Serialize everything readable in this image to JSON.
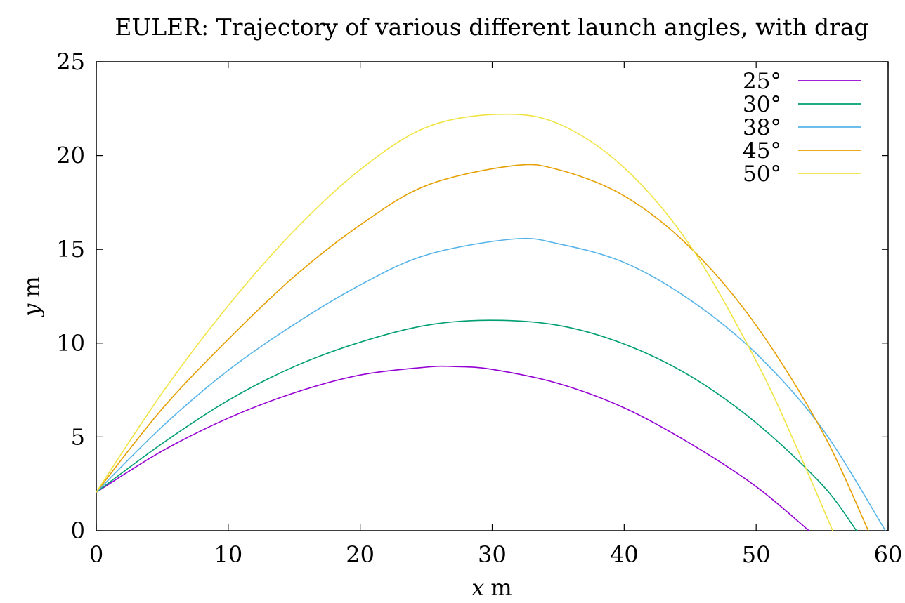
{
  "chart_data": {
    "type": "line",
    "title": "EULER: Trajectory of various different launch angles, with drag",
    "xlabel": {
      "var": "x",
      "unit": "m"
    },
    "ylabel": {
      "var": "y",
      "unit": "m"
    },
    "xlim": [
      0,
      60
    ],
    "ylim": [
      0,
      25
    ],
    "xticks": [
      0,
      10,
      20,
      30,
      40,
      50,
      60
    ],
    "yticks": [
      0,
      5,
      10,
      15,
      20,
      25
    ],
    "grid": false,
    "legend_position": "top-right",
    "series": [
      {
        "name": "25°",
        "color": "#9400d3",
        "x": [
          0,
          5,
          10,
          15,
          20,
          25,
          27.2,
          30,
          35,
          40,
          45,
          50,
          54.0
        ],
        "y": [
          2.05,
          4.25,
          6.0,
          7.35,
          8.3,
          8.72,
          8.75,
          8.6,
          7.85,
          6.55,
          4.65,
          2.35,
          0
        ]
      },
      {
        "name": "30°",
        "color": "#009e73",
        "x": [
          0,
          5,
          10,
          15,
          20,
          25,
          29.8,
          35,
          40,
          45,
          50,
          55,
          57.6
        ],
        "y": [
          2.05,
          4.65,
          6.95,
          8.75,
          10.05,
          10.95,
          11.22,
          10.95,
          9.95,
          8.25,
          5.75,
          2.45,
          0
        ]
      },
      {
        "name": "38°",
        "color": "#56b4e9",
        "x": [
          0,
          5,
          10,
          15,
          20,
          25,
          31.6,
          35,
          40,
          45,
          50,
          55,
          59.8
        ],
        "y": [
          2.05,
          5.55,
          8.55,
          11.0,
          13.1,
          14.7,
          15.55,
          15.3,
          14.3,
          12.3,
          9.45,
          5.45,
          0
        ]
      },
      {
        "name": "45°",
        "color": "#e69f00",
        "x": [
          0,
          5,
          10,
          15,
          20,
          25,
          31.5,
          35,
          40,
          45,
          50,
          55,
          58.5
        ],
        "y": [
          2.05,
          6.5,
          10.2,
          13.55,
          16.3,
          18.4,
          19.45,
          19.25,
          17.85,
          15.1,
          10.95,
          5.3,
          0
        ]
      },
      {
        "name": "50°",
        "color": "#f0e442",
        "x": [
          0,
          5,
          10,
          15,
          20,
          25,
          30.5,
          35,
          40,
          45,
          50,
          53,
          55.8
        ],
        "y": [
          2.05,
          7.35,
          12.0,
          16.0,
          19.25,
          21.5,
          22.2,
          21.7,
          19.35,
          15.2,
          9.05,
          4.55,
          0
        ]
      }
    ]
  }
}
